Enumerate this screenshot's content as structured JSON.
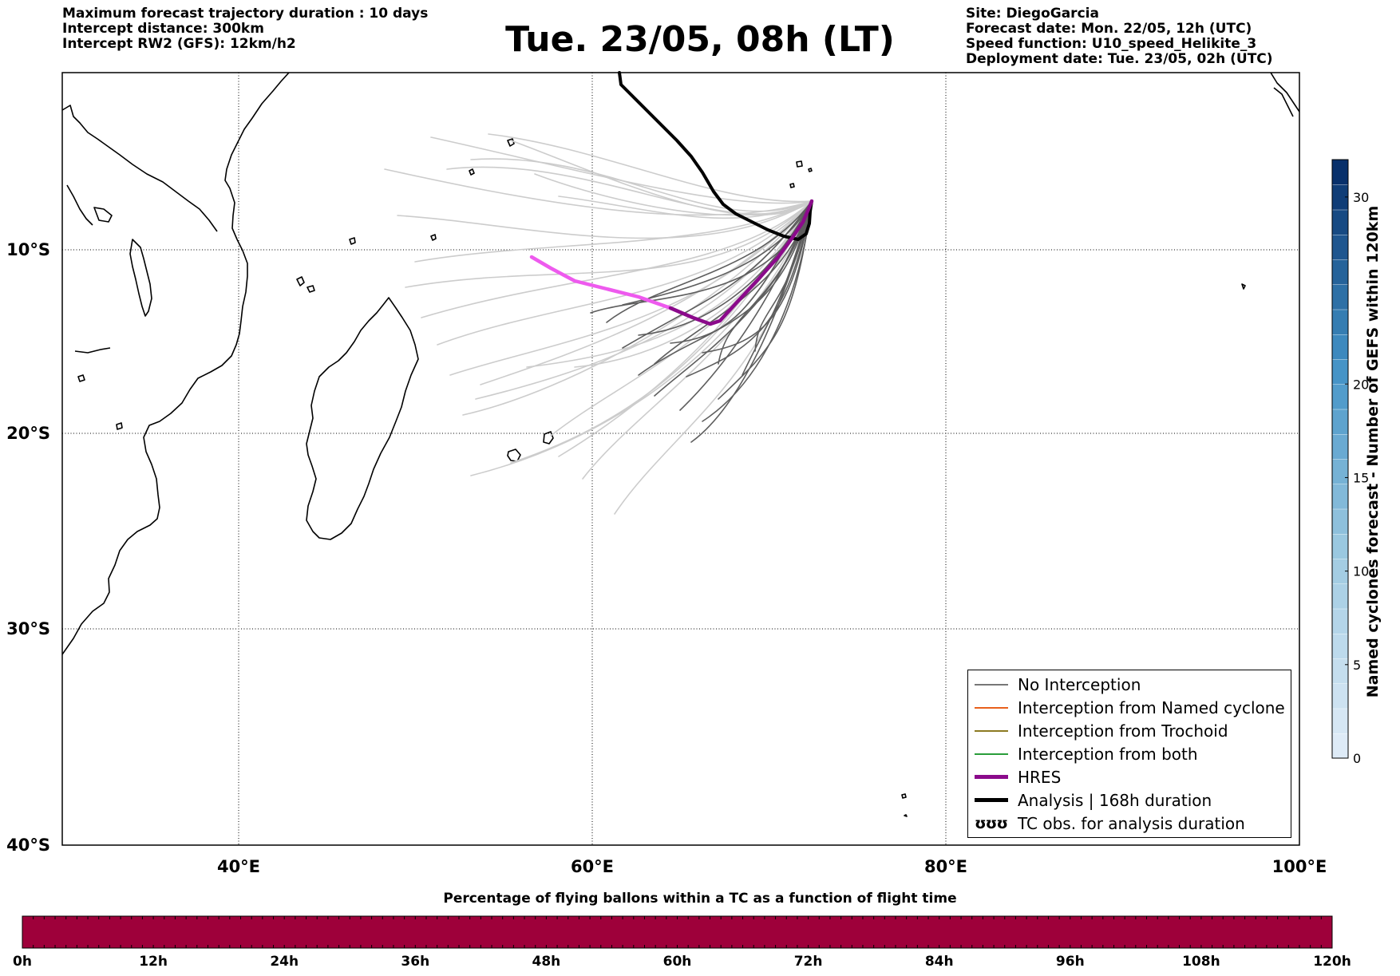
{
  "header": {
    "left": [
      "Maximum forecast trajectory duration : 10 days",
      "Intercept distance: 300km",
      "Intercept RW2 (GFS):  12km/h2"
    ],
    "title": "Tue. 23/05, 08h (LT)",
    "right": [
      "Site: DiegoGarcia",
      "Forecast date: Mon. 22/05, 12h (UTC)",
      "Speed function: U10_speed_Helikite_3",
      "Deployment date: Tue. 23/05, 02h (UTC)"
    ]
  },
  "map": {
    "lon_range": [
      30,
      100
    ],
    "lat_range": [
      -40,
      0
    ],
    "lon_ticks": [
      {
        "value": 40,
        "label": "40°E"
      },
      {
        "value": 60,
        "label": "60°E"
      },
      {
        "value": 80,
        "label": "80°E"
      },
      {
        "value": 100,
        "label": "100°E"
      }
    ],
    "lat_ticks": [
      {
        "value": -10,
        "label": "10°S"
      },
      {
        "value": -20,
        "label": "20°S"
      },
      {
        "value": -30,
        "label": "30°S"
      },
      {
        "value": -40,
        "label": "40°S"
      }
    ],
    "grid": "dotted"
  },
  "legend": {
    "position": "lower-right",
    "items": [
      {
        "label": "No Interception",
        "color": "#777777"
      },
      {
        "label": "Interception from Named cyclone",
        "color": "#e8601c"
      },
      {
        "label": "Interception from Trochoid",
        "color": "#8c7a22"
      },
      {
        "label": "Interception from both",
        "color": "#2a9d3a"
      },
      {
        "label": "HRES",
        "color": "#8b0a8b"
      },
      {
        "label": "Analysis | 168h duration",
        "color": "#000000"
      },
      {
        "label": "TC obs. for analysis duration",
        "symbol": "ʊʊʊ"
      }
    ]
  },
  "colorbar_right": {
    "label": "Named cyclones forecast - Number of GEFS within 120km",
    "range": [
      0,
      32
    ],
    "ticks": [
      0,
      5,
      10,
      15,
      20,
      30
    ],
    "colors": [
      "#deebf7",
      "#9ecae1",
      "#4292c6",
      "#08306b"
    ]
  },
  "colorbar_bottom": {
    "title": "Percentage of flying ballons within a TC as a function of flight time",
    "ticks": [
      "0h",
      "12h",
      "24h",
      "36h",
      "48h",
      "60h",
      "72h",
      "84h",
      "96h",
      "108h",
      "120h"
    ],
    "fill_color": "#9e003a"
  },
  "colors": {
    "ensemble_near": "#5e5e5e",
    "ensemble_far": "#cccccc",
    "hres_early": "#8b0a8b",
    "hres_late": "#ee5aee",
    "analysis": "#000000"
  }
}
